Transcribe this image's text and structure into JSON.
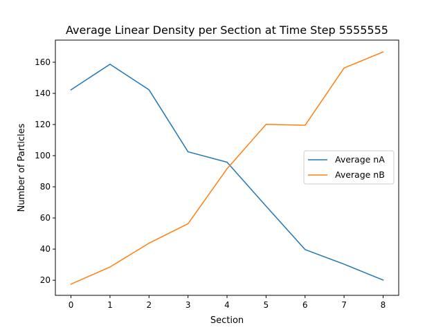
{
  "chart_data": {
    "type": "line",
    "title": "Average Linear Density per Section at Time Step 5555555",
    "xlabel": "Section",
    "ylabel": "Number of Particles",
    "x": [
      0,
      1,
      2,
      3,
      4,
      5,
      6,
      7,
      8
    ],
    "xlim": [
      -0.4,
      8.4
    ],
    "ylim": [
      10.3,
      174.2
    ],
    "xticks": [
      "0",
      "1",
      "2",
      "3",
      "4",
      "5",
      "6",
      "7",
      "8"
    ],
    "yticks": [
      "20",
      "40",
      "60",
      "80",
      "100",
      "120",
      "140",
      "160"
    ],
    "grid": false,
    "legend_position": "center-right",
    "series": [
      {
        "name": "Average nA",
        "color": "#1f77b4",
        "values": [
          142.3,
          158.7,
          142.3,
          102.5,
          95.8,
          67.6,
          39.7,
          30.3,
          20.1
        ]
      },
      {
        "name": "Average nB",
        "color": "#ff7f0e",
        "values": [
          17.5,
          28.5,
          43.8,
          56.3,
          91.6,
          120.1,
          119.5,
          156.3,
          166.6
        ]
      }
    ]
  }
}
